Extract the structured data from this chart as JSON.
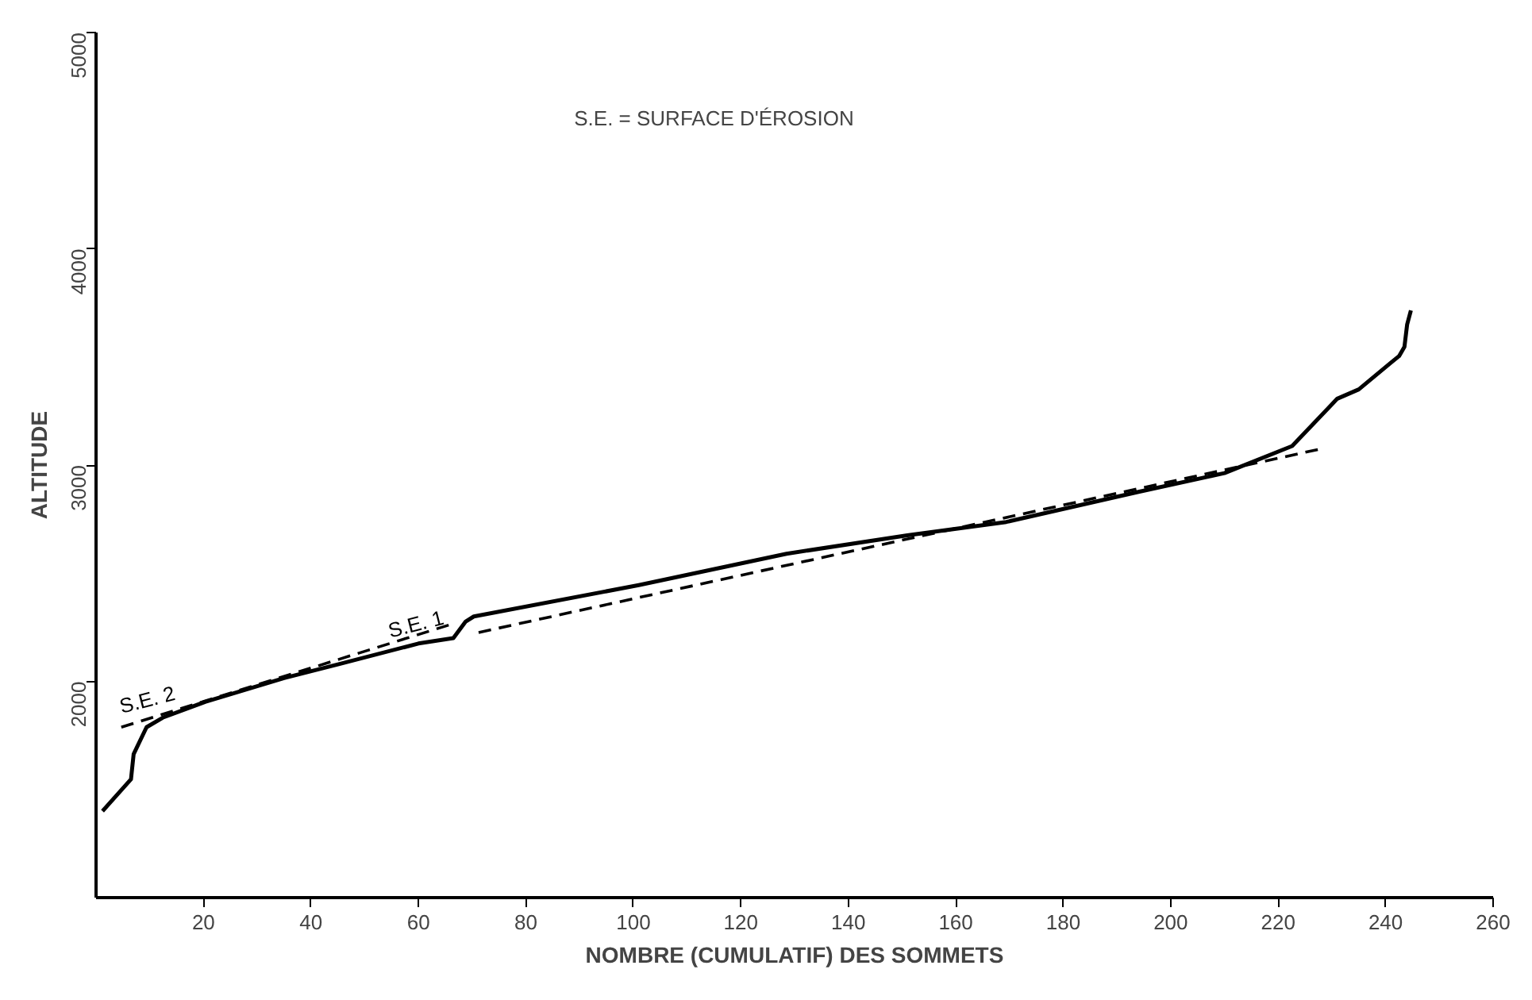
{
  "chart_data": {
    "type": "line",
    "xlabel": "NOMBRE (CUMULATIF) DES SOMMETS",
    "ylabel": "ALTITUDE",
    "xlim": [
      0,
      260
    ],
    "ylim": [
      1000,
      5000
    ],
    "xticks": [
      20,
      40,
      60,
      80,
      100,
      120,
      140,
      160,
      180,
      200,
      220,
      240,
      260
    ],
    "yticks": [
      2000,
      3000,
      4000,
      5000
    ],
    "grid": false,
    "series": [
      {
        "color": "#000000",
        "line_style": "solid",
        "x": [
          1.2,
          6.5,
          7,
          9.4,
          12.4,
          20.3,
          35,
          45.3,
          60,
          66.5,
          68.8,
          70.3,
          101,
          128.5,
          151,
          169.4,
          194,
          210,
          222.6,
          231,
          235,
          241,
          242.5,
          243.5,
          244,
          244.7
        ],
        "values": [
          1400,
          1547,
          1664,
          1788,
          1832,
          1905,
          2015,
          2080,
          2175,
          2200,
          2277,
          2300,
          2445,
          2590,
          2675,
          2737,
          2876,
          2963,
          3088,
          3307,
          3350,
          3474,
          3504,
          3547,
          3650,
          3715
        ]
      },
      {
        "color": "#000000",
        "line_style": "dashed",
        "x": [
          4.7,
          66
        ],
        "values": [
          1788,
          2263
        ]
      },
      {
        "color": "#000000",
        "line_style": "dashed",
        "x": [
          71.2,
          227.6
        ],
        "values": [
          2226,
          3073
        ]
      }
    ],
    "annotations": [
      "S.E. = SURFACE D'ÉROSION",
      {
        "text": "S.E. 2",
        "x": 5,
        "y": 1830
      },
      {
        "text": "S.E. 1",
        "x": 55,
        "y": 2180
      }
    ]
  }
}
